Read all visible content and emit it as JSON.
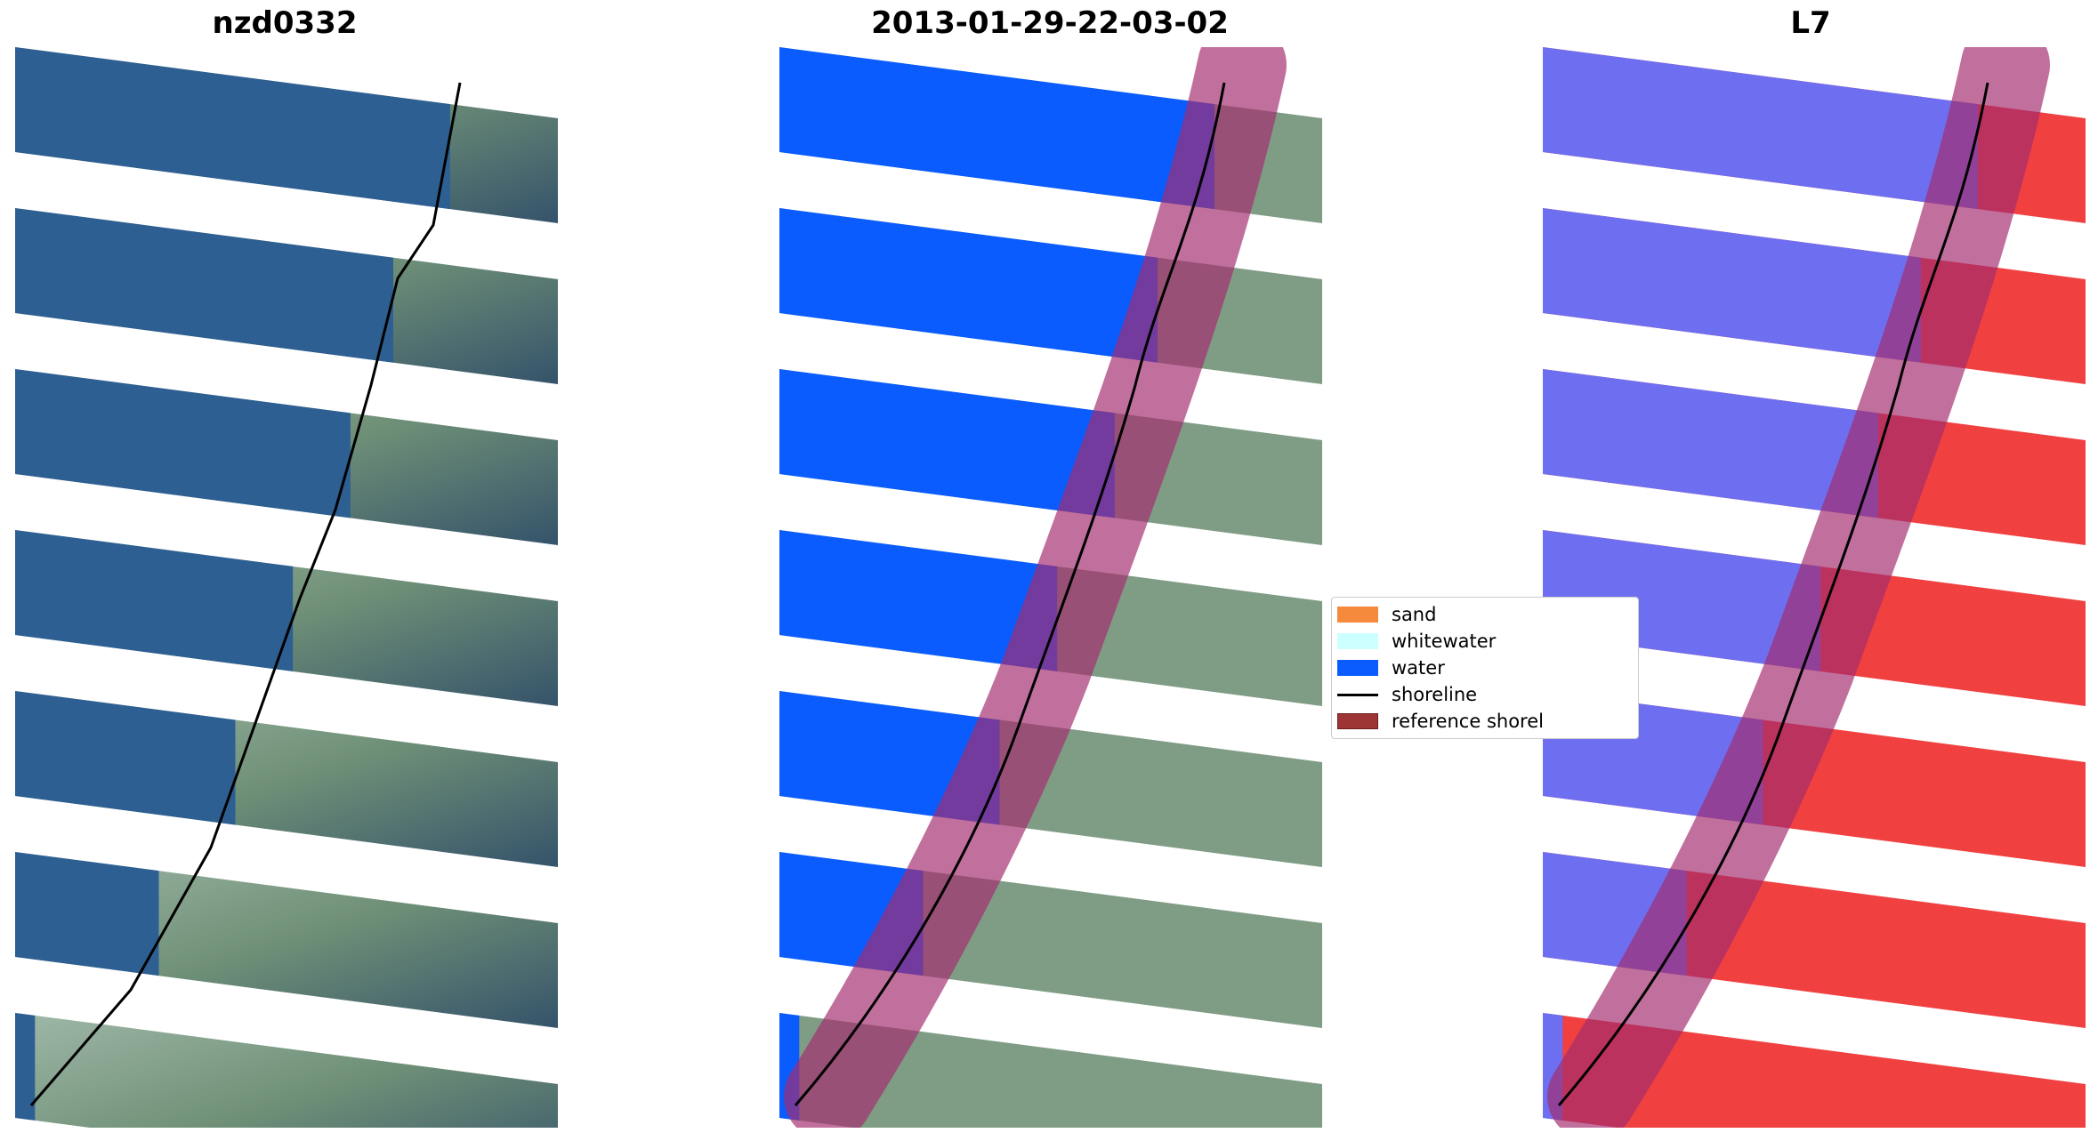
{
  "panels": [
    {
      "title": "nzd0332",
      "kind": "rgb"
    },
    {
      "title": "2013-01-29-22-03-02",
      "kind": "classified"
    },
    {
      "title": "L7",
      "kind": "index"
    }
  ],
  "legend": {
    "items": [
      {
        "label": "sand",
        "color": "#f58a3c",
        "type": "patch"
      },
      {
        "label": "whitewater",
        "color": "#ccffff",
        "type": "patch"
      },
      {
        "label": "water",
        "color": "#0a5cff",
        "type": "patch"
      },
      {
        "label": "shoreline",
        "color": "#000000",
        "type": "line"
      },
      {
        "label": "reference shorel",
        "color": "#9e3535",
        "type": "patch"
      }
    ]
  },
  "colors": {
    "water_rgb": "#2d5f93",
    "water_class": "#0a5cff",
    "land_rgb": "#7f9c85",
    "index_water": "#6d6ff0",
    "index_land": "#f04040",
    "buffer": "#a32c6e"
  }
}
